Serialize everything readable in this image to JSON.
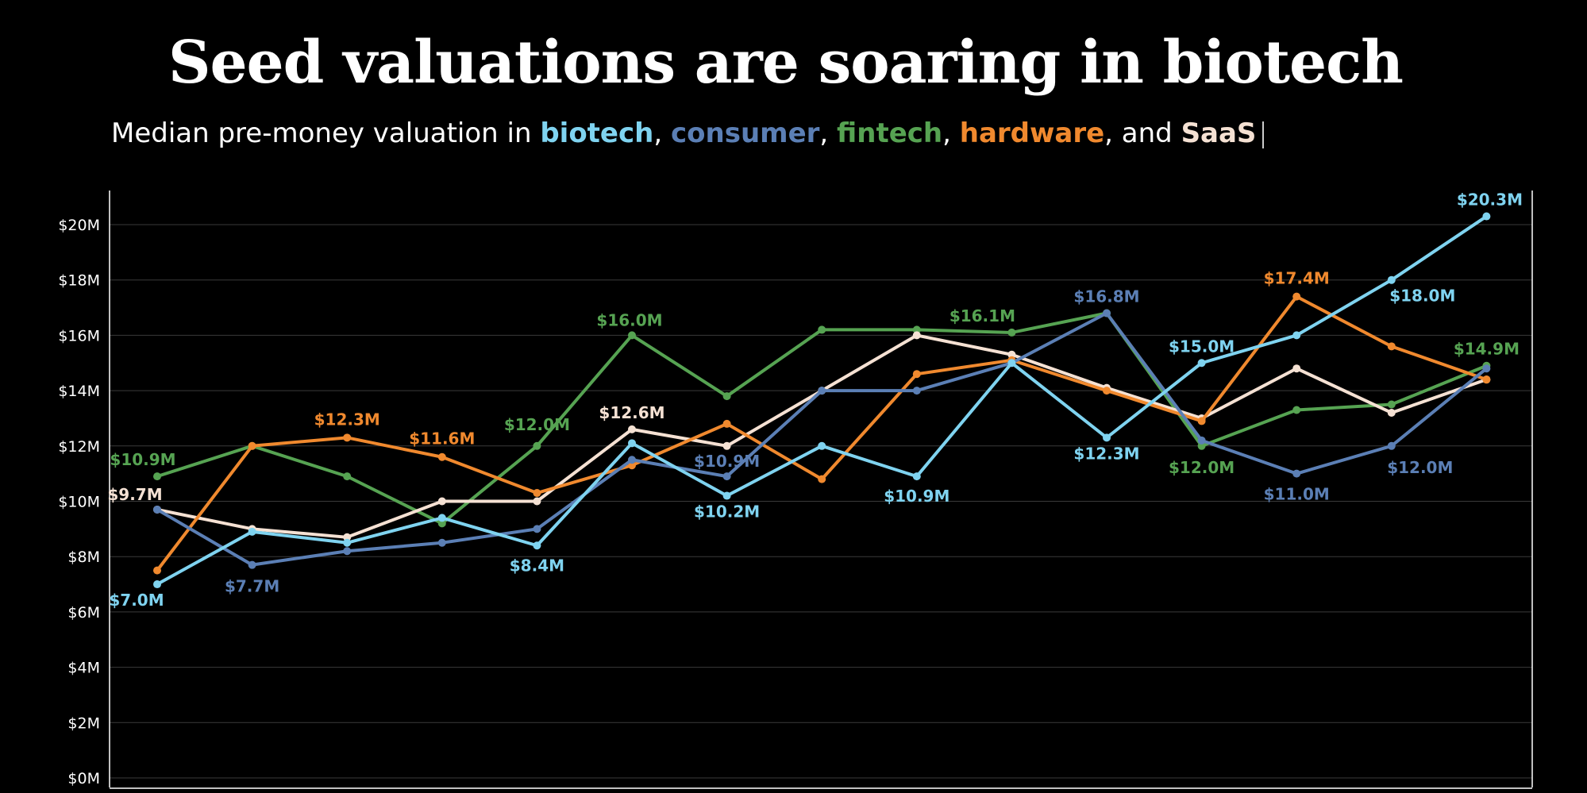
{
  "title": "Seed valuations are soaring in biotech",
  "subtitle": {
    "prefix": "Median pre-money valuation in ",
    "biotech": "biotech",
    "sep1": ", ",
    "consumer": "consumer",
    "sep2": ", ",
    "fintech": "fintech",
    "sep3": ", ",
    "hardware": "hardware",
    "sep4": ", and ",
    "saas": "SaaS"
  },
  "colors": {
    "biotech": "#7fd3f0",
    "consumer": "#5b7fb5",
    "fintech": "#56a352",
    "hardware": "#f0892e",
    "saas": "#f5e1d3",
    "grid": "#3a3a3a",
    "axis": "#ffffff"
  },
  "chart_data": {
    "type": "line",
    "title": "Seed valuations are soaring in biotech",
    "ylabel": "Median pre-money valuation",
    "ylim": [
      0,
      20
    ],
    "yticks": [
      0,
      2,
      4,
      6,
      8,
      10,
      12,
      14,
      16,
      18,
      20
    ],
    "ytick_labels": [
      "$0M",
      "$2M",
      "$4M",
      "$6M",
      "$8M",
      "$10M",
      "$12M",
      "$14M",
      "$16M",
      "$18M",
      "$20M"
    ],
    "x": [
      1,
      2,
      3,
      4,
      5,
      6,
      7,
      8,
      9,
      10,
      11,
      12,
      13,
      14,
      15,
      16
    ],
    "series": [
      {
        "name": "fintech",
        "color_key": "fintech",
        "values": [
          10.9,
          12.0,
          10.9,
          9.2,
          12.0,
          16.0,
          13.8,
          16.2,
          16.2,
          16.1,
          16.8,
          12.0,
          13.3,
          13.5,
          14.9,
          14.9
        ],
        "labels": [
          {
            "i": 0,
            "text": "$10.9M"
          },
          {
            "i": 4,
            "text": "$12.0M"
          },
          {
            "i": 5,
            "text": "$16.0M"
          },
          {
            "i": 9,
            "text": "$16.1M"
          },
          {
            "i": 11,
            "text": "$12.0M"
          },
          {
            "i": 14,
            "text": "$14.9M"
          }
        ]
      },
      {
        "name": "SaaS",
        "color_key": "saas",
        "values": [
          9.7,
          9.0,
          8.7,
          10.0,
          10.0,
          12.6,
          12.0,
          14.0,
          16.0,
          15.3,
          14.1,
          13.0,
          14.8,
          13.2,
          14.4,
          14.4
        ],
        "labels": [
          {
            "i": 0,
            "text": "$9.7M"
          },
          {
            "i": 5,
            "text": "$12.6M"
          }
        ]
      },
      {
        "name": "hardware",
        "color_key": "hardware",
        "values": [
          7.5,
          12.0,
          12.3,
          11.6,
          10.3,
          11.3,
          12.8,
          10.8,
          14.6,
          15.1,
          14.0,
          12.9,
          17.4,
          15.6,
          14.4,
          14.4
        ],
        "labels": [
          {
            "i": 2,
            "text": "$12.3M"
          },
          {
            "i": 3,
            "text": "$11.6M"
          },
          {
            "i": 12,
            "text": "$17.4M"
          }
        ]
      },
      {
        "name": "consumer",
        "color_key": "consumer",
        "values": [
          9.7,
          7.7,
          8.2,
          8.5,
          9.0,
          11.5,
          10.9,
          14.0,
          14.0,
          15.0,
          16.8,
          12.2,
          11.0,
          12.0,
          14.8,
          14.8
        ],
        "labels": [
          {
            "i": 1,
            "text": "$7.7M"
          },
          {
            "i": 6,
            "text": "$10.9M"
          },
          {
            "i": 10,
            "text": "$16.8M"
          },
          {
            "i": 12,
            "text": "$11.0M"
          },
          {
            "i": 13,
            "text": "$12.0M"
          }
        ]
      },
      {
        "name": "biotech",
        "color_key": "biotech",
        "values": [
          7.0,
          8.9,
          8.5,
          9.4,
          8.4,
          12.1,
          10.2,
          12.0,
          10.9,
          15.0,
          12.3,
          15.0,
          16.0,
          18.0,
          20.3,
          20.3
        ],
        "labels": [
          {
            "i": 0,
            "text": "$7.0M"
          },
          {
            "i": 4,
            "text": "$8.4M"
          },
          {
            "i": 6,
            "text": "$10.2M"
          },
          {
            "i": 8,
            "text": "$10.9M"
          },
          {
            "i": 10,
            "text": "$12.3M"
          },
          {
            "i": 11,
            "text": "$15.0M"
          },
          {
            "i": 13,
            "text": "$18.0M"
          },
          {
            "i": 14,
            "text": "$20.3M"
          }
        ]
      }
    ]
  }
}
